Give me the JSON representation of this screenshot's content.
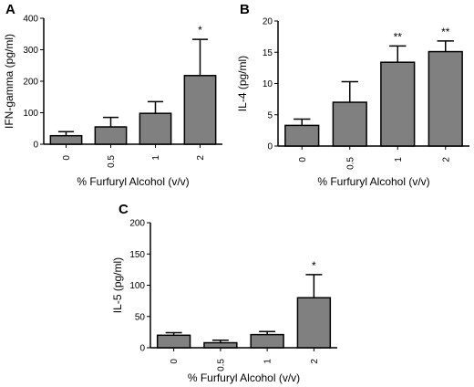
{
  "colors": {
    "bar_fill": "#808080",
    "stroke": "#000000",
    "background": "#ffffff"
  },
  "chart_data": [
    {
      "type": "bar",
      "panel": "A",
      "categories": [
        "0",
        "0.5",
        "1",
        "2"
      ],
      "values": [
        27,
        55,
        98,
        218
      ],
      "error_upper": [
        40,
        85,
        135,
        333
      ],
      "significance": [
        "",
        "",
        "",
        "*"
      ],
      "xlabel": "% Furfuryl  Alcohol (v/v)",
      "ylabel": "IFN-gamma (pg/ml)",
      "ylim": [
        0,
        400
      ],
      "yticks": [
        0,
        100,
        200,
        300,
        400
      ],
      "grid": false
    },
    {
      "type": "bar",
      "panel": "B",
      "categories": [
        "0",
        "0.5",
        "1",
        "2"
      ],
      "values": [
        3.3,
        7.0,
        13.4,
        15.1
      ],
      "error_upper": [
        4.3,
        10.3,
        16.0,
        16.8
      ],
      "significance": [
        "",
        "",
        "**",
        "**"
      ],
      "xlabel": "% Furfuryl  Alcohol (v/v)",
      "ylabel": "IL-4 (pg/ml)",
      "ylim": [
        0,
        20
      ],
      "yticks": [
        0,
        5,
        10,
        15,
        20
      ],
      "grid": false
    },
    {
      "type": "bar",
      "panel": "C",
      "categories": [
        "0",
        "0.5",
        "1",
        "2"
      ],
      "values": [
        20,
        8,
        21,
        80
      ],
      "error_upper": [
        24,
        12,
        26,
        117
      ],
      "significance": [
        "",
        "",
        "",
        "*"
      ],
      "xlabel": "% Furfuryl  Alcohol (v/v)",
      "ylabel": "IL-5 (pg/ml)",
      "ylim": [
        0,
        200
      ],
      "yticks": [
        0,
        50,
        100,
        150,
        200
      ],
      "grid": false
    }
  ]
}
